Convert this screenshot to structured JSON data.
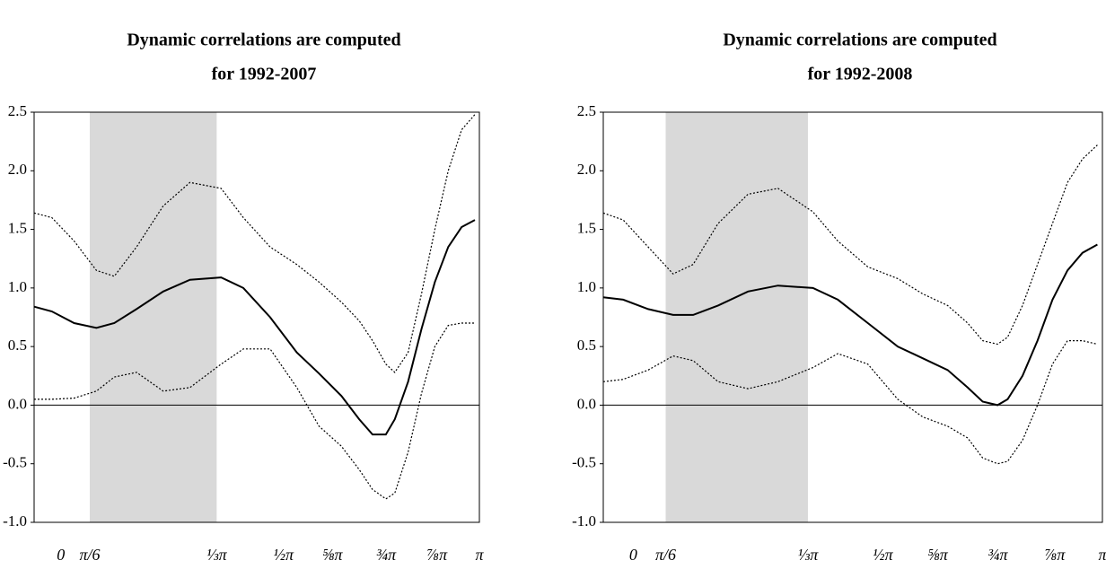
{
  "chart_data": [
    {
      "type": "line",
      "title": [
        "Dynamic correlations are computed",
        "for 1992-2007"
      ],
      "x": [
        0,
        0.04,
        0.09,
        0.14,
        0.18,
        0.23,
        0.29,
        0.35,
        0.42,
        0.47,
        0.53,
        0.59,
        0.64,
        0.69,
        0.73,
        0.76,
        0.79,
        0.81,
        0.84,
        0.87,
        0.9,
        0.93,
        0.96,
        0.99
      ],
      "series": [
        {
          "color": "#000000",
          "style": "solid",
          "values": [
            0.84,
            0.8,
            0.7,
            0.66,
            0.7,
            0.82,
            0.97,
            1.07,
            1.09,
            1.0,
            0.75,
            0.45,
            0.27,
            0.08,
            -0.12,
            -0.25,
            -0.25,
            -0.12,
            0.2,
            0.65,
            1.05,
            1.35,
            1.52,
            1.58
          ]
        },
        {
          "color": "#000000",
          "style": "dotted",
          "values": [
            1.64,
            1.6,
            1.4,
            1.15,
            1.1,
            1.35,
            1.7,
            1.9,
            1.85,
            1.6,
            1.35,
            1.2,
            1.05,
            0.88,
            0.72,
            0.55,
            0.35,
            0.28,
            0.45,
            0.95,
            1.5,
            2.0,
            2.35,
            2.48
          ]
        },
        {
          "color": "#000000",
          "style": "dotted",
          "values": [
            0.05,
            0.05,
            0.06,
            0.12,
            0.24,
            0.28,
            0.12,
            0.15,
            0.35,
            0.48,
            0.48,
            0.15,
            -0.18,
            -0.35,
            -0.55,
            -0.72,
            -0.8,
            -0.75,
            -0.4,
            0.1,
            0.5,
            0.68,
            0.7,
            0.7
          ]
        }
      ],
      "shade": [
        0.125,
        0.41
      ],
      "shade_color": "#d9d9d9",
      "zero_line": true,
      "xlim": [
        0,
        1
      ],
      "xticks": [
        {
          "value": 0.06,
          "label": "0"
        },
        {
          "value": 0.125,
          "label": "π/6"
        },
        {
          "value": 0.41,
          "label": "⅓π"
        },
        {
          "value": 0.56,
          "label": "½π"
        },
        {
          "value": 0.67,
          "label": "⅝π"
        },
        {
          "value": 0.79,
          "label": "¾π"
        },
        {
          "value": 0.905,
          "label": "⅞π"
        },
        {
          "value": 1,
          "label": "π"
        }
      ],
      "ylim": [
        -1,
        2.5
      ],
      "yticks": [
        {
          "value": -1,
          "label": "-1.0"
        },
        -0.5,
        {
          "value": 0,
          "label": "0.0"
        },
        0.5,
        {
          "value": 1,
          "label": "1.0"
        },
        1.5,
        {
          "value": 2,
          "label": "2.0"
        },
        2.5
      ]
    },
    {
      "type": "line",
      "title": [
        "Dynamic correlations are computed",
        "for 1992-2008"
      ],
      "x": [
        0,
        0.04,
        0.09,
        0.14,
        0.18,
        0.23,
        0.29,
        0.35,
        0.42,
        0.47,
        0.53,
        0.59,
        0.64,
        0.69,
        0.73,
        0.76,
        0.79,
        0.81,
        0.84,
        0.87,
        0.9,
        0.93,
        0.96,
        0.99
      ],
      "series": [
        {
          "color": "#000000",
          "style": "solid",
          "values": [
            0.92,
            0.9,
            0.82,
            0.77,
            0.77,
            0.85,
            0.97,
            1.02,
            1.0,
            0.9,
            0.7,
            0.5,
            0.4,
            0.3,
            0.15,
            0.03,
            0.0,
            0.05,
            0.25,
            0.55,
            0.9,
            1.15,
            1.3,
            1.37
          ]
        },
        {
          "color": "#000000",
          "style": "dotted",
          "values": [
            1.64,
            1.58,
            1.35,
            1.12,
            1.2,
            1.55,
            1.8,
            1.85,
            1.65,
            1.4,
            1.18,
            1.08,
            0.95,
            0.85,
            0.7,
            0.55,
            0.52,
            0.58,
            0.85,
            1.2,
            1.55,
            1.9,
            2.1,
            2.22
          ]
        },
        {
          "color": "#000000",
          "style": "dotted",
          "values": [
            0.2,
            0.22,
            0.3,
            0.42,
            0.38,
            0.2,
            0.14,
            0.2,
            0.32,
            0.44,
            0.35,
            0.05,
            -0.1,
            -0.18,
            -0.28,
            -0.45,
            -0.5,
            -0.48,
            -0.3,
            0.0,
            0.35,
            0.55,
            0.55,
            0.52
          ]
        }
      ],
      "shade": [
        0.125,
        0.41
      ],
      "shade_color": "#d9d9d9",
      "zero_line": true,
      "xlim": [
        0,
        1
      ],
      "xticks": [
        {
          "value": 0.06,
          "label": "0"
        },
        {
          "value": 0.125,
          "label": "π/6"
        },
        {
          "value": 0.41,
          "label": "⅓π"
        },
        {
          "value": 0.56,
          "label": "½π"
        },
        {
          "value": 0.67,
          "label": "⅝π"
        },
        {
          "value": 0.79,
          "label": "¾π"
        },
        {
          "value": 0.905,
          "label": "⅞π"
        },
        {
          "value": 1,
          "label": "π"
        }
      ],
      "ylim": [
        -1,
        2.5
      ],
      "yticks": [
        {
          "value": -1,
          "label": "-1.0"
        },
        -0.5,
        {
          "value": 0,
          "label": "0.0"
        },
        0.5,
        {
          "value": 1,
          "label": "1.0"
        },
        1.5,
        {
          "value": 2,
          "label": "2.0"
        },
        2.5
      ]
    }
  ]
}
